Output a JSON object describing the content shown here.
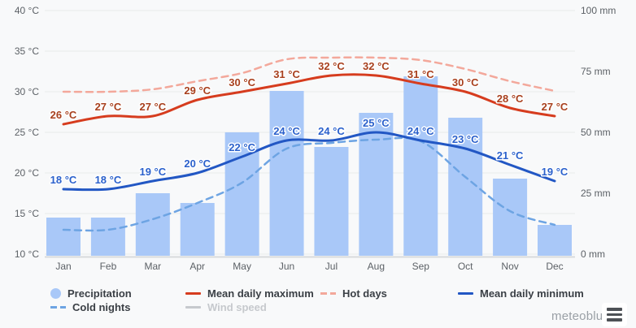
{
  "chart_data": {
    "type": "combo-climate (bar + line)",
    "categories": [
      "Jan",
      "Feb",
      "Mar",
      "Apr",
      "May",
      "Jun",
      "Jul",
      "Aug",
      "Sep",
      "Oct",
      "Nov",
      "Dec"
    ],
    "left_axis": {
      "unit": "°C",
      "ticks": [
        10,
        15,
        20,
        25,
        30,
        35,
        40
      ],
      "range": [
        10,
        40
      ]
    },
    "right_axis": {
      "unit": "mm",
      "ticks": [
        0,
        25,
        50,
        75,
        100
      ],
      "range": [
        0,
        100
      ]
    },
    "grid": "horizontal",
    "legend_position": "bottom",
    "series": [
      {
        "name": "Precipitation",
        "type": "bar",
        "axis": "right",
        "unit": "mm",
        "color": "#a9c8f8",
        "values": [
          15,
          15,
          25,
          21,
          50,
          67,
          44,
          58,
          73,
          56,
          31,
          12
        ]
      },
      {
        "name": "Mean daily maximum",
        "type": "line",
        "axis": "left",
        "unit": "°C",
        "color": "#d63c1e",
        "label_color": "#a8401e",
        "show_point_labels": true,
        "values": [
          26,
          27,
          27,
          29,
          30,
          31,
          32,
          32,
          31,
          30,
          28,
          27
        ]
      },
      {
        "name": "Hot days",
        "type": "dashed-line",
        "axis": "left",
        "unit": "°C (plotted against left axis, unlabeled)",
        "color": "#f3a89b",
        "show_point_labels": false,
        "values": [
          30.0,
          30.0,
          30.3,
          31.3,
          32.3,
          34.0,
          34.2,
          34.2,
          33.9,
          32.8,
          31.3,
          30.1
        ]
      },
      {
        "name": "Mean daily minimum",
        "type": "line",
        "axis": "left",
        "unit": "°C",
        "color": "#2257c4",
        "label_color": "#2b61cc",
        "show_point_labels": true,
        "values": [
          18,
          18,
          19,
          20,
          22,
          24,
          24,
          25,
          24,
          23,
          21,
          19
        ]
      },
      {
        "name": "Cold nights",
        "type": "dashed-line",
        "axis": "left",
        "unit": "°C (plotted against left axis, unlabeled)",
        "color": "#6da4e3",
        "show_point_labels": false,
        "values": [
          13.0,
          13.0,
          14.3,
          16.3,
          18.8,
          23.0,
          23.7,
          24.1,
          23.9,
          19.5,
          15.3,
          13.6
        ]
      },
      {
        "name": "Wind speed",
        "type": "line",
        "axis": "none",
        "disabled": true,
        "color": "#c6c9cd",
        "values": []
      }
    ]
  },
  "legend": {
    "items": [
      {
        "label": "Precipitation",
        "marker": "circle",
        "series": 0,
        "disabled": false
      },
      {
        "label": "Mean daily maximum",
        "marker": "line",
        "series": 1,
        "disabled": false
      },
      {
        "label": "Hot days",
        "marker": "dash",
        "series": 2,
        "disabled": false
      },
      {
        "label": "Mean daily minimum",
        "marker": "line",
        "series": 3,
        "disabled": false
      },
      {
        "label": "Cold nights",
        "marker": "dash",
        "series": 4,
        "disabled": false
      },
      {
        "label": "Wind speed",
        "marker": "line",
        "series": 5,
        "disabled": true
      }
    ]
  },
  "branding": {
    "logo_text": "meteoblue"
  },
  "colors": {
    "background": "#f8f9fa",
    "gridline": "#e9eaeb",
    "axis_line": "#d8dadc",
    "axis_text": "#5c6166",
    "legend_text": "#3a3f45",
    "legend_text_disabled": "#c6c9cd",
    "logo_text": "#9aa0a6",
    "menu_icon": "#4d5156",
    "menu_button_bg": "#ffffff"
  }
}
